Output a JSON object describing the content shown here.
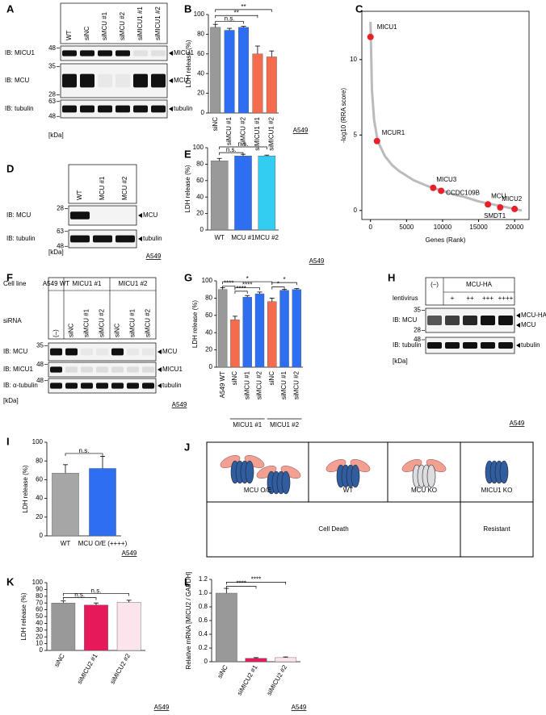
{
  "chart_data": [
    {
      "panel": "B",
      "type": "bar",
      "ylabel": "LDH release (%)",
      "categories": [
        "siNC",
        "siMCU #1",
        "siMCU #2",
        "siMICU1 #1",
        "siMICU1 #2"
      ],
      "values": [
        87,
        84,
        87,
        60,
        57
      ],
      "errors": [
        3,
        2,
        1,
        8,
        6
      ],
      "colors": [
        "#999999",
        "#2e6ff2",
        "#2e6ff2",
        "#f46b4e",
        "#f46b4e"
      ],
      "ylim": [
        0,
        100
      ],
      "yticks": [
        0,
        20,
        40,
        60,
        80,
        100
      ],
      "annotations": [
        "n.s.",
        "**",
        "**"
      ],
      "cell_line": "A549"
    },
    {
      "panel": "C",
      "type": "scatter",
      "xlabel": "Genes (Rank)",
      "ylabel": "-log10 (RRA score)",
      "curve": {
        "x": [
          0,
          200,
          500,
          1000,
          2000,
          3000,
          4000,
          5000,
          6000,
          7000,
          8000,
          9000,
          10000,
          11000,
          12000,
          13000,
          14000,
          15000,
          16000,
          17000,
          18000,
          19000,
          20000,
          21000
        ],
        "y": [
          12.5,
          8,
          6,
          4.6,
          3.6,
          3.0,
          2.6,
          2.3,
          2.0,
          1.8,
          1.6,
          1.45,
          1.3,
          1.15,
          1.0,
          0.9,
          0.75,
          0.6,
          0.5,
          0.4,
          0.3,
          0.2,
          0.1,
          0.0
        ],
        "color": "#bbbbbb"
      },
      "points": {
        "labels": [
          "MICU1",
          "MCUR1",
          "MICU3",
          "CCDC109B",
          "MCU",
          "MICU2",
          "SMDT1"
        ],
        "x": [
          0,
          900,
          8700,
          9800,
          16300,
          18000,
          20000
        ],
        "y": [
          11.5,
          4.6,
          1.5,
          1.3,
          0.4,
          0.2,
          0.1
        ],
        "color": "#e8202a"
      },
      "xlim": [
        -1200,
        22000
      ],
      "ylim": [
        -0.6,
        13.2
      ],
      "xticks": [
        0,
        5000,
        10000,
        15000,
        20000
      ],
      "yticks": [
        0,
        5,
        10
      ]
    },
    {
      "panel": "E",
      "type": "bar",
      "ylabel": "LDH release (%)",
      "categories": [
        "WT",
        "MCU #1",
        "MCU #2"
      ],
      "values": [
        84,
        90,
        90
      ],
      "errors": [
        3,
        2,
        1
      ],
      "colors": [
        "#999999",
        "#2e6ff2",
        "#33cdf2"
      ],
      "ylim": [
        0,
        100
      ],
      "yticks": [
        0,
        20,
        40,
        60,
        80,
        100
      ],
      "annotations": [
        "n.s.",
        "n.s."
      ],
      "cell_line": "A549"
    },
    {
      "panel": "G",
      "type": "bar",
      "ylabel": "LDH release (%)",
      "categories": [
        "A549 WT",
        "siNC",
        "siMCU #1",
        "siMCU #2",
        "siNC",
        "siMCU #1",
        "siMCU #2"
      ],
      "values": [
        90,
        55,
        81,
        85,
        76,
        89,
        90
      ],
      "errors": [
        2,
        4,
        2,
        2,
        4,
        1,
        1
      ],
      "colors": [
        "#999999",
        "#f46b4e",
        "#2e6ff2",
        "#2e6ff2",
        "#f46b4e",
        "#2e6ff2",
        "#2e6ff2"
      ],
      "groups": [
        "MICU1 #1",
        "MICU1 #2"
      ],
      "ylim": [
        0,
        100
      ],
      "yticks": [
        0,
        20,
        40,
        60,
        80,
        100
      ],
      "annotations": [
        "****",
        "****",
        "****",
        "*",
        "*",
        "*"
      ]
    },
    {
      "panel": "I",
      "type": "bar",
      "ylabel": "LDH release (%)",
      "categories": [
        "WT",
        "MCU O/E (++++)"
      ],
      "values": [
        67,
        72
      ],
      "errors": [
        9,
        13
      ],
      "colors": [
        "#a6a6a6",
        "#2e6ff2"
      ],
      "ylim": [
        0,
        100
      ],
      "yticks": [
        0,
        20,
        40,
        60,
        80,
        100
      ],
      "annotations": [
        "n.s."
      ],
      "cell_line": "A549"
    },
    {
      "panel": "K",
      "type": "bar",
      "ylabel": "LDH release (%)",
      "categories": [
        "siNC",
        "siMICU2 #1",
        "siMICU2 #2"
      ],
      "values": [
        70,
        67,
        71
      ],
      "errors": [
        3,
        3,
        3
      ],
      "colors": [
        "#999999",
        "#e6195a",
        "#fce4ec"
      ],
      "ylim": [
        0,
        100
      ],
      "yticks": [
        0,
        10,
        20,
        30,
        40,
        50,
        60,
        70,
        80,
        90,
        100
      ],
      "annotations": [
        "n.s.",
        "n.s."
      ],
      "cell_line": "A549"
    },
    {
      "panel": "L",
      "type": "bar",
      "ylabel": "Relative mRNA [MICU2 / GAPDH]",
      "categories": [
        "siNC",
        "siMICU2 #1",
        "siMICU2 #2"
      ],
      "values": [
        1.0,
        0.05,
        0.06
      ],
      "errors": [
        0.07,
        0.01,
        0.01
      ],
      "colors": [
        "#999999",
        "#e6195a",
        "#fce4ec"
      ],
      "ylim": [
        0,
        1.2
      ],
      "yticks": [
        0,
        0.2,
        0.4,
        0.6,
        0.8,
        {
          "value": 1,
          "label": "1.0"
        },
        1.2
      ],
      "annotations": [
        "****",
        "****"
      ],
      "cell_line": "A549"
    }
  ],
  "blots": [
    {
      "panel": "A",
      "lanes": [
        "WT",
        "siNC",
        "siMCU #1",
        "siMCU #2",
        "siMICU1 #1",
        "siMICU1 #2"
      ],
      "rows": [
        {
          "label": "IB: MICU1",
          "markers": [
            48
          ],
          "bands": [
            "MICU1"
          ]
        },
        {
          "label": "IB: MCU",
          "markers": [
            35,
            28
          ],
          "bands": [
            "MCU"
          ]
        },
        {
          "label": "IB: tubulin",
          "markers": [
            63,
            48
          ],
          "bands": [
            "tubulin"
          ]
        }
      ],
      "unit": "[kDa]"
    },
    {
      "panel": "D",
      "lanes": [
        "WT",
        "MCU #1",
        "MCU #2"
      ],
      "rows": [
        {
          "label": "IB: MCU",
          "markers": [
            28
          ],
          "bands": [
            "MCU"
          ]
        },
        {
          "label": "IB: tubulin",
          "markers": [
            63,
            48
          ],
          "bands": [
            "tubulin"
          ]
        }
      ],
      "unit": "[kDa]",
      "cell_line": "A549"
    },
    {
      "panel": "F",
      "header": [
        "Cell line",
        "A549 WT",
        "MICU1 #1",
        "MICU1 #2",
        "siRNA"
      ],
      "lanes": [
        "(–)",
        "siNC",
        "siMCU #1",
        "siMCU #2",
        "siNC",
        "siMCU #1",
        "siMCU #2"
      ],
      "rows": [
        {
          "label": "IB: MCU",
          "markers": [
            35
          ],
          "bands": [
            "MCU"
          ]
        },
        {
          "label": "IB: MICU1",
          "markers": [
            48
          ],
          "bands": [
            "MICU1"
          ]
        },
        {
          "label": "IB: α-tubulin",
          "markers": [
            48
          ],
          "bands": [
            "tubulin"
          ]
        }
      ],
      "unit": "[kDa]",
      "cell_line": "A549"
    },
    {
      "panel": "H",
      "header": [
        "(–)",
        "MCU-HA",
        "lentivirus"
      ],
      "lanes": [
        "+",
        "++",
        "+++",
        "++++"
      ],
      "rows": [
        {
          "label": "IB: MCU",
          "markers": [
            35,
            28
          ],
          "bands": [
            "MCU-HA",
            "MCU"
          ]
        },
        {
          "label": "IB: tubulin",
          "markers": [
            48
          ],
          "bands": [
            "tubulin"
          ]
        }
      ],
      "unit": "[kDa]",
      "cell_line": "A549"
    }
  ],
  "diagram": {
    "panel": "J",
    "cells": [
      "MCU O/E",
      "WT",
      "MCU KO",
      "MICU1 KO"
    ],
    "outcomes": [
      "Cell Death",
      "Resistant"
    ]
  }
}
